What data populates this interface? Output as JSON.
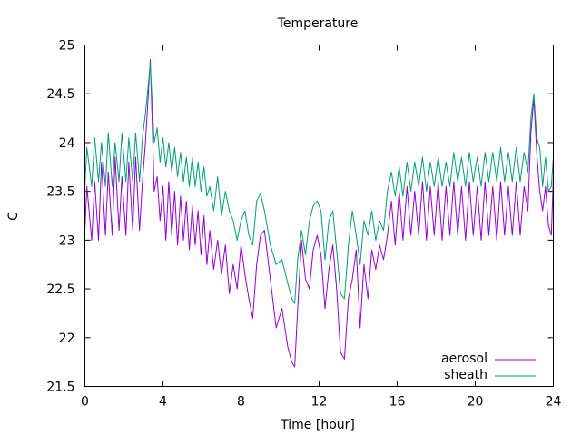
{
  "chart_data": {
    "type": "line",
    "title": "Temperature",
    "xlabel": "Time [hour]",
    "ylabel": "C",
    "xlim": [
      0,
      24
    ],
    "ylim": [
      21.5,
      25
    ],
    "xticks": [
      0,
      4,
      8,
      12,
      16,
      20,
      24
    ],
    "xtick_labels": [
      "0",
      "4",
      "8",
      "12",
      "16",
      "20",
      "24"
    ],
    "yticks": [
      21.5,
      22,
      22.5,
      23,
      23.5,
      24,
      24.5,
      25
    ],
    "ytick_labels": [
      "21.5",
      "22",
      "22.5",
      "23",
      "23.5",
      "24",
      "24.5",
      "25"
    ],
    "grid": false,
    "legend_position": "bottom-right",
    "series": [
      {
        "name": "aerosol",
        "color": "#9400d3",
        "x": [
          0,
          0.1,
          0.35,
          0.5,
          0.7,
          0.85,
          1.05,
          1.2,
          1.4,
          1.55,
          1.75,
          1.9,
          2.1,
          2.25,
          2.45,
          2.6,
          2.8,
          2.95,
          3.1,
          3.25,
          3.35,
          3.45,
          3.55,
          3.7,
          3.85,
          4.0,
          4.15,
          4.3,
          4.45,
          4.6,
          4.75,
          4.9,
          5.05,
          5.2,
          5.35,
          5.5,
          5.65,
          5.8,
          5.95,
          6.1,
          6.25,
          6.4,
          6.6,
          6.8,
          7.0,
          7.2,
          7.4,
          7.6,
          7.8,
          8.0,
          8.2,
          8.4,
          8.6,
          8.8,
          9.0,
          9.2,
          9.5,
          9.8,
          10.1,
          10.4,
          10.6,
          10.75,
          10.9,
          11.1,
          11.3,
          11.5,
          11.7,
          11.9,
          12.1,
          12.3,
          12.5,
          12.7,
          12.9,
          13.1,
          13.3,
          13.5,
          13.7,
          13.9,
          14.1,
          14.3,
          14.5,
          14.7,
          14.9,
          15.1,
          15.3,
          15.5,
          15.7,
          15.9,
          16.1,
          16.3,
          16.5,
          16.7,
          16.9,
          17.1,
          17.3,
          17.5,
          17.7,
          17.9,
          18.1,
          18.3,
          18.5,
          18.7,
          18.9,
          19.1,
          19.3,
          19.5,
          19.7,
          19.9,
          20.1,
          20.3,
          20.5,
          20.7,
          20.9,
          21.1,
          21.3,
          21.5,
          21.7,
          21.9,
          22.1,
          22.3,
          22.5,
          22.7,
          22.85,
          23.0,
          23.15,
          23.3,
          23.45,
          23.6,
          23.75,
          23.9,
          24.0
        ],
        "y": [
          23.1,
          23.55,
          23.0,
          23.6,
          23.0,
          23.8,
          23.05,
          23.7,
          23.05,
          23.85,
          23.1,
          23.65,
          23.05,
          23.8,
          23.1,
          23.85,
          23.1,
          23.6,
          24.0,
          24.5,
          24.85,
          24.2,
          23.5,
          23.65,
          23.2,
          23.55,
          23.0,
          23.6,
          23.05,
          23.5,
          22.95,
          23.45,
          23.0,
          23.4,
          22.9,
          23.35,
          22.95,
          23.3,
          22.85,
          23.25,
          22.75,
          23.1,
          22.7,
          23.0,
          22.65,
          22.95,
          22.45,
          22.75,
          22.5,
          22.95,
          22.65,
          22.4,
          22.2,
          22.75,
          23.05,
          23.1,
          22.6,
          22.1,
          22.3,
          21.9,
          21.75,
          21.7,
          22.3,
          23.0,
          22.6,
          22.5,
          22.9,
          23.05,
          22.85,
          22.3,
          22.7,
          22.95,
          22.5,
          21.85,
          21.78,
          22.4,
          22.6,
          22.9,
          22.1,
          22.75,
          22.4,
          22.9,
          22.7,
          22.95,
          22.8,
          23.05,
          23.4,
          22.95,
          23.5,
          23.0,
          23.55,
          23.05,
          23.5,
          23.05,
          23.6,
          23.0,
          23.55,
          23.05,
          23.6,
          23.0,
          23.55,
          23.05,
          23.6,
          23.05,
          23.55,
          23.0,
          23.6,
          23.05,
          23.55,
          23.0,
          23.6,
          23.05,
          23.55,
          23.0,
          23.6,
          23.05,
          23.55,
          23.05,
          23.6,
          23.05,
          23.55,
          23.3,
          24.1,
          24.45,
          23.9,
          23.5,
          23.3,
          23.55,
          23.15,
          23.05,
          23.65
        ]
      },
      {
        "name": "sheath",
        "color": "#009e73",
        "x": [
          0,
          0.1,
          0.35,
          0.5,
          0.7,
          0.85,
          1.05,
          1.2,
          1.4,
          1.55,
          1.75,
          1.9,
          2.1,
          2.25,
          2.45,
          2.6,
          2.8,
          2.95,
          3.1,
          3.25,
          3.35,
          3.45,
          3.55,
          3.7,
          3.85,
          4.0,
          4.15,
          4.3,
          4.45,
          4.6,
          4.75,
          4.9,
          5.05,
          5.2,
          5.35,
          5.5,
          5.65,
          5.8,
          5.95,
          6.1,
          6.25,
          6.4,
          6.6,
          6.8,
          7.0,
          7.2,
          7.4,
          7.6,
          7.8,
          8.0,
          8.2,
          8.4,
          8.6,
          8.8,
          9.0,
          9.2,
          9.5,
          9.8,
          10.1,
          10.4,
          10.6,
          10.75,
          10.9,
          11.1,
          11.3,
          11.5,
          11.7,
          11.9,
          12.1,
          12.3,
          12.5,
          12.7,
          12.9,
          13.1,
          13.3,
          13.5,
          13.7,
          13.9,
          14.1,
          14.3,
          14.5,
          14.7,
          14.9,
          15.1,
          15.3,
          15.5,
          15.7,
          15.9,
          16.1,
          16.3,
          16.5,
          16.7,
          16.9,
          17.1,
          17.3,
          17.5,
          17.7,
          17.9,
          18.1,
          18.3,
          18.5,
          18.7,
          18.9,
          19.1,
          19.3,
          19.5,
          19.7,
          19.9,
          20.1,
          20.3,
          20.5,
          20.7,
          20.9,
          21.1,
          21.3,
          21.5,
          21.7,
          21.9,
          22.1,
          22.3,
          22.5,
          22.7,
          22.85,
          23.0,
          23.15,
          23.3,
          23.45,
          23.6,
          23.75,
          23.9,
          24.0
        ],
        "y": [
          23.55,
          23.95,
          23.55,
          24.05,
          23.6,
          24.0,
          23.55,
          24.1,
          23.55,
          24.0,
          23.6,
          24.1,
          23.6,
          24.05,
          23.6,
          24.1,
          23.6,
          24.05,
          24.3,
          24.6,
          24.8,
          24.4,
          24.0,
          24.15,
          23.8,
          24.05,
          23.75,
          24.0,
          23.7,
          23.95,
          23.65,
          23.9,
          23.6,
          23.85,
          23.55,
          23.85,
          23.55,
          23.8,
          23.5,
          23.75,
          23.45,
          23.55,
          23.3,
          23.65,
          23.25,
          23.5,
          23.3,
          23.2,
          23.0,
          23.2,
          23.3,
          23.05,
          22.95,
          23.4,
          23.48,
          23.3,
          22.95,
          22.75,
          22.8,
          22.55,
          22.4,
          22.35,
          22.8,
          23.1,
          22.85,
          23.2,
          23.35,
          23.4,
          23.3,
          22.8,
          23.2,
          23.3,
          22.9,
          22.45,
          22.4,
          22.95,
          23.3,
          23.05,
          22.75,
          23.2,
          23.05,
          23.3,
          23.0,
          23.2,
          23.1,
          23.5,
          23.7,
          23.45,
          23.75,
          23.45,
          23.8,
          23.5,
          23.8,
          23.55,
          23.85,
          23.5,
          23.8,
          23.55,
          23.85,
          23.55,
          23.8,
          23.55,
          23.9,
          23.6,
          23.85,
          23.55,
          23.9,
          23.6,
          23.85,
          23.55,
          23.9,
          23.6,
          23.9,
          23.6,
          23.95,
          23.6,
          23.9,
          23.6,
          23.95,
          23.6,
          23.9,
          23.7,
          24.25,
          24.5,
          24.05,
          23.95,
          23.55,
          23.85,
          23.5,
          23.55,
          23.85
        ]
      }
    ]
  }
}
